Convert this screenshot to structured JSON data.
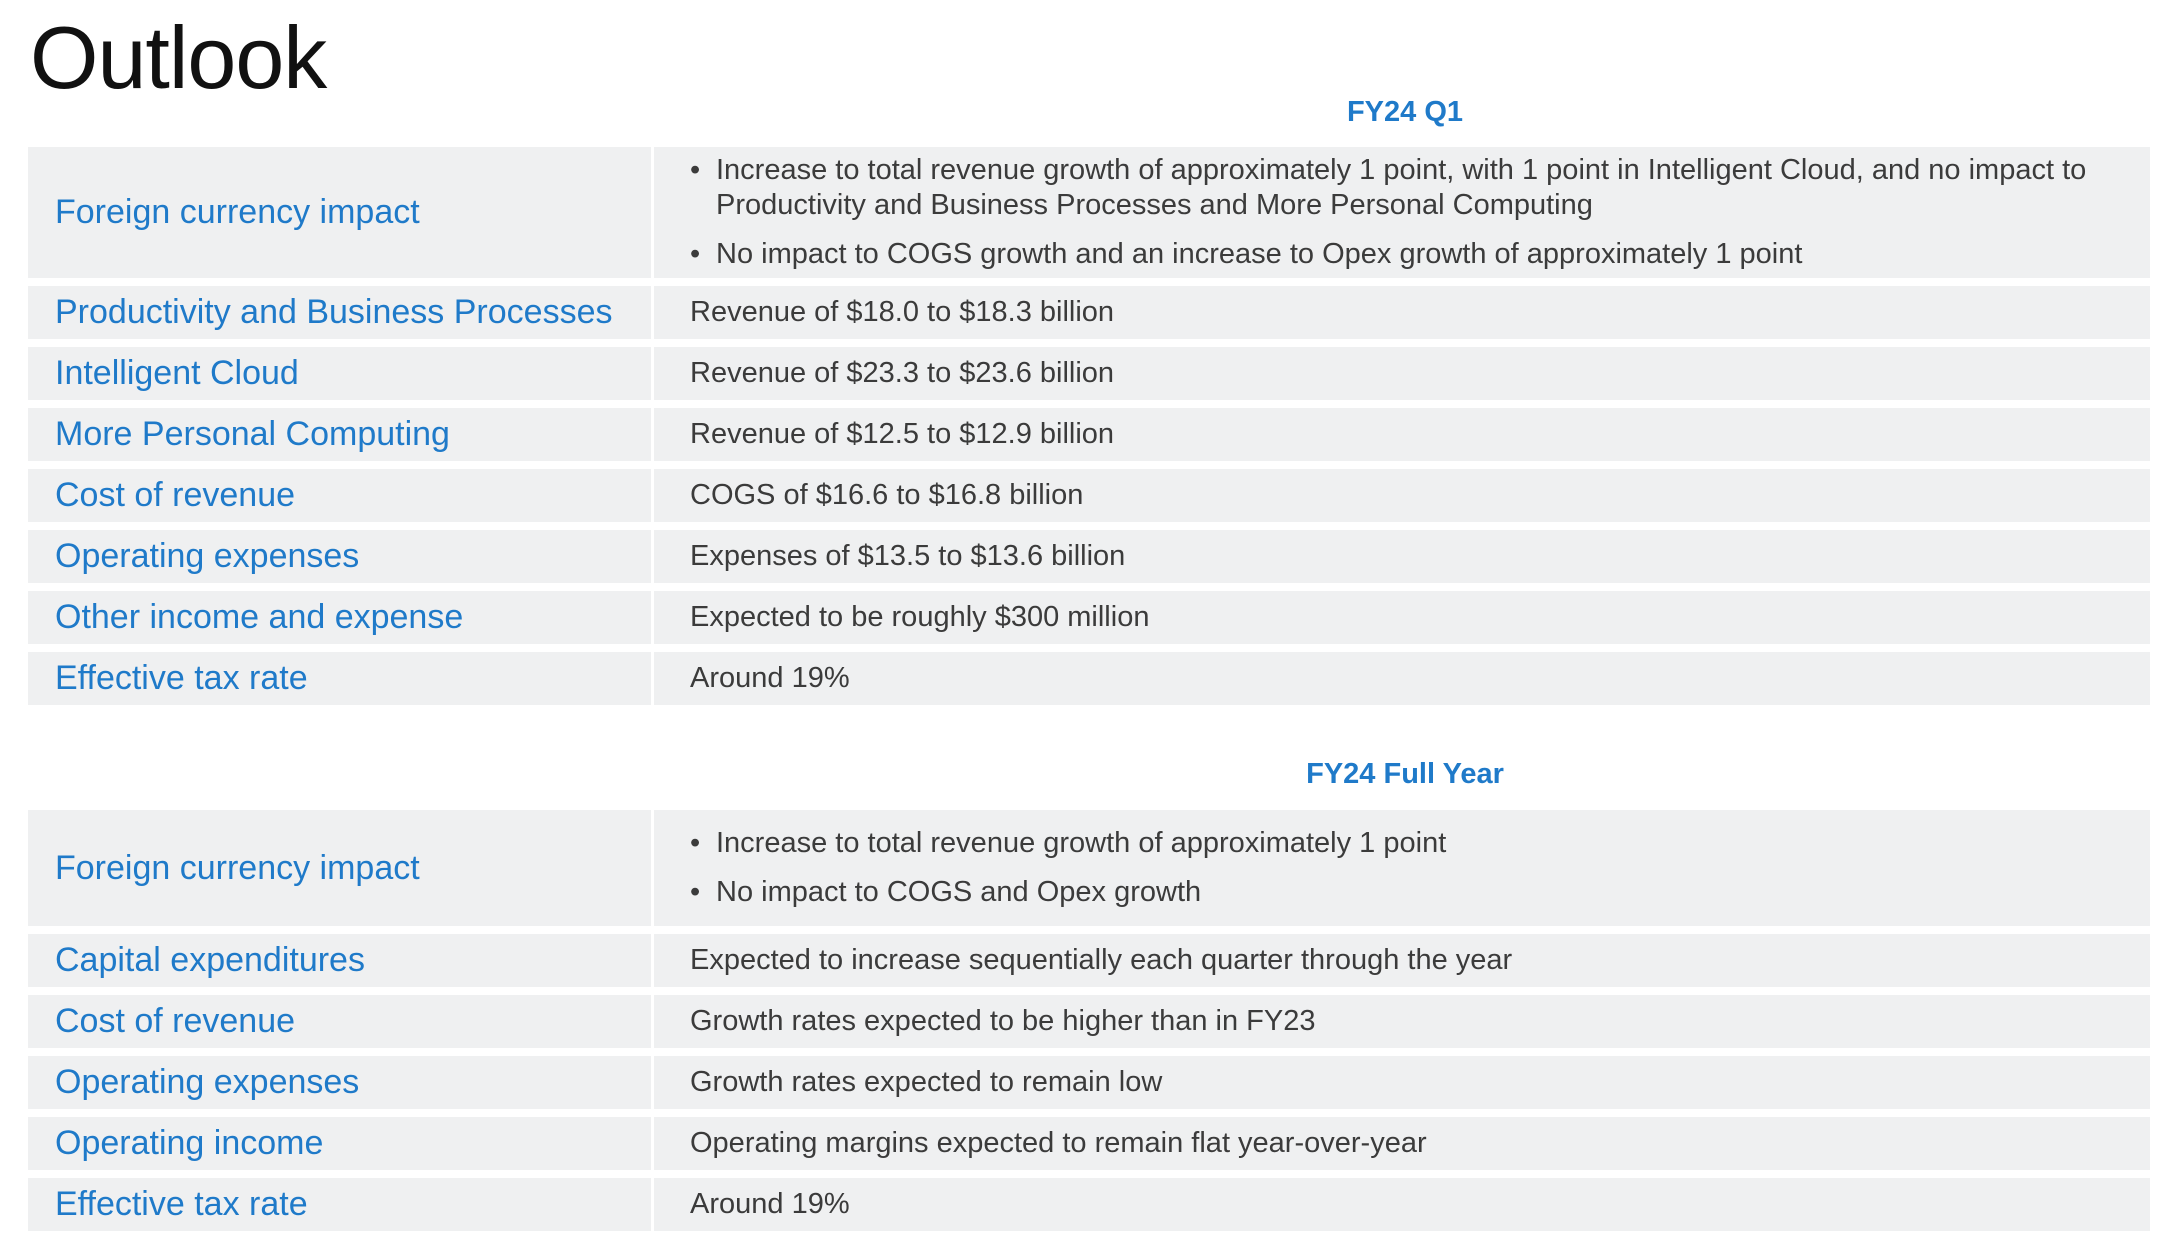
{
  "title": "Outlook",
  "q1": {
    "heading": "FY24 Q1",
    "fx": {
      "label": "Foreign currency impact",
      "bullets": [
        "Increase to total revenue growth of approximately 1 point, with 1 point in Intelligent Cloud, and no impact to Productivity and Business Processes and More Personal Computing",
        "No impact to COGS growth and an increase to Opex growth of approximately 1 point"
      ]
    },
    "rows": [
      {
        "label": "Productivity and Business Processes",
        "value": "Revenue of $18.0 to $18.3 billion"
      },
      {
        "label": "Intelligent Cloud",
        "value": "Revenue of $23.3 to $23.6 billion"
      },
      {
        "label": "More Personal Computing",
        "value": "Revenue of $12.5 to $12.9 billion"
      },
      {
        "label": "Cost of revenue",
        "value": "COGS of $16.6 to $16.8 billion"
      },
      {
        "label": "Operating expenses",
        "value": "Expenses of $13.5 to $13.6 billion"
      },
      {
        "label": "Other income and expense",
        "value": "Expected to be roughly $300 million"
      },
      {
        "label": "Effective tax rate",
        "value": "Around 19%"
      }
    ]
  },
  "fy": {
    "heading": "FY24 Full Year",
    "fx": {
      "label": "Foreign currency impact",
      "bullets": [
        "Increase to total revenue growth of approximately 1 point",
        "No impact to COGS and Opex growth"
      ]
    },
    "rows": [
      {
        "label": "Capital expenditures",
        "value": "Expected to increase sequentially each quarter through the year"
      },
      {
        "label": "Cost of revenue",
        "value": "Growth rates expected to be higher than in FY23"
      },
      {
        "label": "Operating expenses",
        "value": "Growth rates expected to remain low"
      },
      {
        "label": "Operating income",
        "value": "Operating margins expected to remain flat year-over-year"
      },
      {
        "label": "Effective tax rate",
        "value": "Around 19%"
      }
    ]
  }
}
